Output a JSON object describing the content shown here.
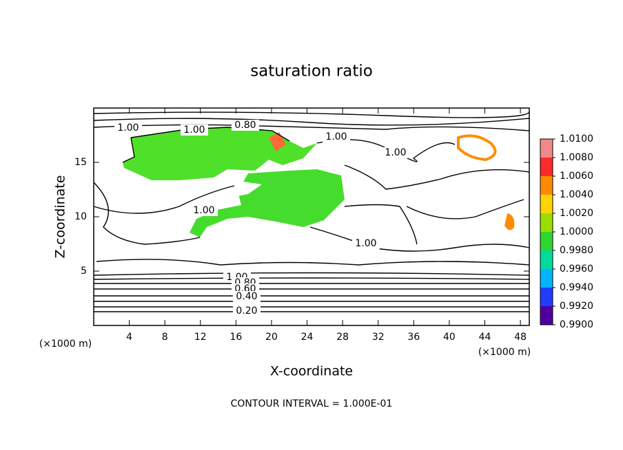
{
  "chart_data": {
    "type": "contour",
    "title": "saturation ratio",
    "x_label": "X-coordinate",
    "y_label": "Z-coordinate",
    "x_unit": "(×1000 m)",
    "y_unit": "(×1000 m)",
    "xlim": [
      0,
      49
    ],
    "ylim": [
      0,
      20
    ],
    "xticks": [
      4,
      8,
      12,
      16,
      20,
      24,
      28,
      32,
      36,
      40,
      44,
      48
    ],
    "yticks": [
      5,
      10,
      15
    ],
    "contour_labels": [
      "1.00",
      "1.00",
      "0.80",
      "1.00",
      "1.00",
      "1.00",
      "1.00",
      "1.00",
      "0.80",
      "0.60",
      "0.40",
      "0.20"
    ],
    "colorbar_ticks": [
      {
        "value": 1.01,
        "label": "1.0100"
      },
      {
        "value": 1.008,
        "label": "1.0080"
      },
      {
        "value": 1.006,
        "label": "1.0060"
      },
      {
        "value": 1.004,
        "label": "1.0040"
      },
      {
        "value": 1.002,
        "label": "1.0020"
      },
      {
        "value": 1.0,
        "label": "1.0000"
      },
      {
        "value": 0.998,
        "label": "0.9980"
      },
      {
        "value": 0.996,
        "label": "0.9960"
      },
      {
        "value": 0.994,
        "label": "0.9940"
      },
      {
        "value": 0.992,
        "label": "0.9920"
      },
      {
        "value": 0.99,
        "label": "0.9900"
      }
    ],
    "colorbar_colors": [
      "#f08a8a",
      "#ff2a2a",
      "#ff8c00",
      "#ffd400",
      "#9ade00",
      "#2fd62f",
      "#00dca0",
      "#00b4ff",
      "#1f3cff",
      "#5000a0"
    ],
    "footer": "CONTOUR INTERVAL = 1.000E-01"
  }
}
